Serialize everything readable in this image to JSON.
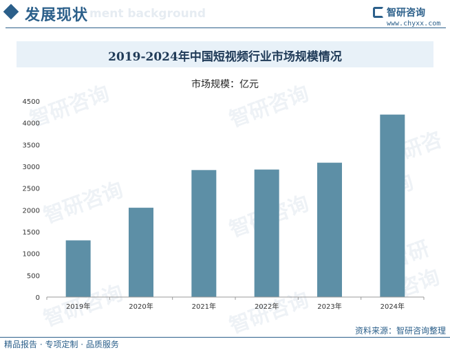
{
  "header": {
    "section_title": "发展现状",
    "watermark_text": "ment background"
  },
  "logo": {
    "name": "智研咨询",
    "url": "www.chyxx.com"
  },
  "chart_data": {
    "type": "bar",
    "title": "2019-2024年中国短视频行业市场规模情况",
    "ylabel": "市场规模：亿元",
    "categories": [
      "2019年",
      "2020年",
      "2021年",
      "2022年",
      "2023年",
      "2024年"
    ],
    "values": [
      1302,
      2051,
      2916,
      2928,
      3085,
      4190
    ],
    "ylim": [
      0,
      4500
    ],
    "yticks": [
      "0",
      "500",
      "1000",
      "1500",
      "2000",
      "2500",
      "3000",
      "3500",
      "4000",
      "4500"
    ],
    "bar_color": "#5d8fa6",
    "grid": false,
    "legend": "none"
  },
  "footer": {
    "source": "资料来源：智研咨询整理",
    "slogan": "精品报告 · 专项定制 · 品质服务"
  },
  "colors": {
    "brand": "#2b5f8a",
    "title_band": "#e8f1f8"
  }
}
